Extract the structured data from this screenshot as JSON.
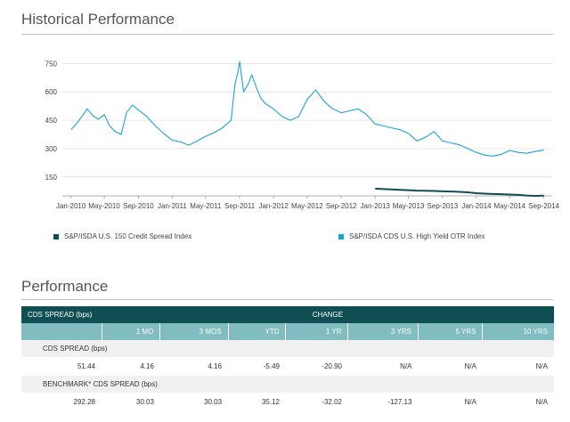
{
  "historical": {
    "title": "Historical Performance"
  },
  "performance": {
    "title": "Performance"
  },
  "legend": {
    "series1": {
      "label": "S&P/ISDA U.S. 150 Credit Spread Index",
      "color": "#0f4f54"
    },
    "series2": {
      "label": "S&P/ISDA CDS U.S. High Yield OTR Index",
      "color": "#1aa3d6"
    }
  },
  "table": {
    "header_label": "CDS SPREAD (bps)",
    "change_label": "CHANGE",
    "columns": [
      "1 MO",
      "3 MOS",
      "YTD",
      "1 YR",
      "3 YRS",
      "5 YRS",
      "10 YRS"
    ],
    "rows": [
      {
        "label": "CDS SPREAD (bps)",
        "values": [
          "51.44",
          "4.16",
          "4.16",
          "-5.49",
          "-20.90",
          "N/A",
          "N/A",
          "N/A"
        ]
      },
      {
        "label": "BENCHMARK* CDS SPREAD (bps)",
        "values": [
          "292.28",
          "30.03",
          "30.03",
          "35.12",
          "-32.02",
          "-127.13",
          "N/A",
          "N/A"
        ]
      }
    ]
  },
  "chart_data": {
    "type": "line",
    "title": "",
    "xlabel": "",
    "ylabel": "",
    "x_ticks": [
      "Jan-2010",
      "May-2010",
      "Sep-2010",
      "Jan-2011",
      "May-2011",
      "Sep-2011",
      "Jan-2012",
      "May-2012",
      "Sep-2012",
      "Jan-2013",
      "May-2013",
      "Sep-2013",
      "Jan-2014",
      "May-2014",
      "Sep-2014"
    ],
    "y_ticks": [
      150,
      300,
      450,
      600,
      750
    ],
    "ylim": [
      50,
      780
    ],
    "xlim": [
      "2009-12-01",
      "2014-10-01"
    ],
    "grid": "horizontal",
    "legend_position": "bottom",
    "series": [
      {
        "name": "S&P/ISDA U.S. 150 Credit Spread Index",
        "color": "#0f4f54",
        "points": [
          [
            "2013-01-01",
            88
          ],
          [
            "2013-02-01",
            86
          ],
          [
            "2013-03-01",
            84
          ],
          [
            "2013-04-01",
            82
          ],
          [
            "2013-05-01",
            80
          ],
          [
            "2013-06-01",
            78
          ],
          [
            "2013-07-01",
            77
          ],
          [
            "2013-08-01",
            76
          ],
          [
            "2013-09-01",
            74
          ],
          [
            "2013-10-01",
            73
          ],
          [
            "2013-11-01",
            71
          ],
          [
            "2013-12-01",
            69
          ],
          [
            "2014-01-01",
            64
          ],
          [
            "2014-02-01",
            62
          ],
          [
            "2014-03-01",
            60
          ],
          [
            "2014-04-01",
            59
          ],
          [
            "2014-05-01",
            57
          ],
          [
            "2014-06-01",
            55
          ],
          [
            "2014-07-01",
            52
          ],
          [
            "2014-08-01",
            50
          ],
          [
            "2014-09-01",
            51
          ]
        ]
      },
      {
        "name": "S&P/ISDA CDS U.S. High Yield OTR Index",
        "color": "#1aa3d6",
        "points": [
          [
            "2010-01-01",
            400
          ],
          [
            "2010-01-20",
            430
          ],
          [
            "2010-02-10",
            470
          ],
          [
            "2010-03-01",
            510
          ],
          [
            "2010-03-20",
            475
          ],
          [
            "2010-04-10",
            455
          ],
          [
            "2010-05-01",
            480
          ],
          [
            "2010-05-20",
            420
          ],
          [
            "2010-06-10",
            390
          ],
          [
            "2010-07-01",
            375
          ],
          [
            "2010-07-20",
            490
          ],
          [
            "2010-08-10",
            530
          ],
          [
            "2010-09-01",
            505
          ],
          [
            "2010-10-01",
            470
          ],
          [
            "2010-11-01",
            420
          ],
          [
            "2010-12-01",
            380
          ],
          [
            "2011-01-01",
            345
          ],
          [
            "2011-02-01",
            335
          ],
          [
            "2011-03-01",
            318
          ],
          [
            "2011-04-01",
            340
          ],
          [
            "2011-05-01",
            365
          ],
          [
            "2011-06-01",
            385
          ],
          [
            "2011-07-01",
            410
          ],
          [
            "2011-08-01",
            450
          ],
          [
            "2011-08-15",
            640
          ],
          [
            "2011-08-25",
            700
          ],
          [
            "2011-09-01",
            760
          ],
          [
            "2011-09-15",
            600
          ],
          [
            "2011-10-01",
            640
          ],
          [
            "2011-10-15",
            690
          ],
          [
            "2011-11-01",
            620
          ],
          [
            "2011-11-15",
            570
          ],
          [
            "2011-12-01",
            540
          ],
          [
            "2012-01-01",
            510
          ],
          [
            "2012-02-01",
            470
          ],
          [
            "2012-03-01",
            450
          ],
          [
            "2012-04-01",
            470
          ],
          [
            "2012-05-01",
            560
          ],
          [
            "2012-06-01",
            610
          ],
          [
            "2012-07-01",
            550
          ],
          [
            "2012-08-01",
            510
          ],
          [
            "2012-09-01",
            490
          ],
          [
            "2012-10-01",
            500
          ],
          [
            "2012-11-01",
            510
          ],
          [
            "2012-12-01",
            480
          ],
          [
            "2013-01-01",
            430
          ],
          [
            "2013-02-01",
            420
          ],
          [
            "2013-03-01",
            410
          ],
          [
            "2013-04-01",
            400
          ],
          [
            "2013-05-01",
            380
          ],
          [
            "2013-06-01",
            340
          ],
          [
            "2013-07-01",
            360
          ],
          [
            "2013-08-01",
            390
          ],
          [
            "2013-09-01",
            340
          ],
          [
            "2013-10-01",
            330
          ],
          [
            "2013-11-01",
            320
          ],
          [
            "2013-12-01",
            300
          ],
          [
            "2014-01-01",
            280
          ],
          [
            "2014-02-01",
            265
          ],
          [
            "2014-03-01",
            260
          ],
          [
            "2014-04-01",
            270
          ],
          [
            "2014-05-01",
            290
          ],
          [
            "2014-06-01",
            280
          ],
          [
            "2014-07-01",
            275
          ],
          [
            "2014-08-01",
            285
          ],
          [
            "2014-09-01",
            292
          ]
        ]
      }
    ]
  }
}
